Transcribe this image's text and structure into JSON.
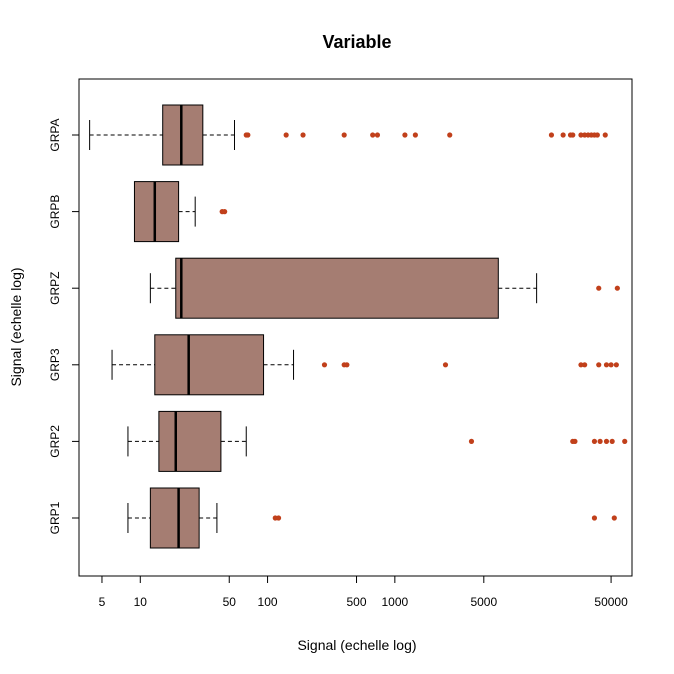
{
  "chart_data": {
    "type": "boxplot",
    "orientation": "horizontal",
    "title": "Variable",
    "xlabel": "Signal (echelle log)",
    "ylabel": "Signal (echelle log)",
    "x_scale": "log",
    "xlim": [
      3.3,
      73000
    ],
    "x_ticks": [
      5,
      10,
      50,
      100,
      500,
      1000,
      5000,
      50000
    ],
    "x_tick_labels": [
      "5",
      "10",
      "50",
      "100",
      "500",
      "1000",
      "5000",
      "50000"
    ],
    "grid": false,
    "box_color": "#a57d72",
    "outlier_color": "#c1401b",
    "groups": [
      {
        "label": "GRP1",
        "whisker_low": 8,
        "q1": 12,
        "median": 20,
        "q3": 29,
        "whisker_high": 40,
        "outliers": [
          115,
          122,
          37000,
          53000
        ]
      },
      {
        "label": "GRP2",
        "whisker_low": 8,
        "q1": 14,
        "median": 19,
        "q3": 43,
        "whisker_high": 68,
        "outliers": [
          4000,
          25000,
          26000,
          37000,
          41000,
          46000,
          51000,
          64000
        ]
      },
      {
        "label": "GRP3",
        "whisker_low": 6,
        "q1": 13,
        "median": 24,
        "q3": 93,
        "whisker_high": 160,
        "outliers": [
          280,
          400,
          420,
          2500,
          29000,
          31000,
          40000,
          46000,
          50000,
          55000
        ]
      },
      {
        "label": "GRPZ",
        "whisker_low": 12,
        "q1": 19,
        "median": 21,
        "q3": 6500,
        "whisker_high": 13000,
        "outliers": [
          40000,
          56000
        ]
      },
      {
        "label": "GRPB",
        "whisker_low": null,
        "q1": 9,
        "median": 13,
        "q3": 20,
        "whisker_high": 27,
        "outliers": [
          44,
          46
        ]
      },
      {
        "label": "GRPA",
        "whisker_low": 4,
        "q1": 15,
        "median": 21,
        "q3": 31,
        "whisker_high": 55,
        "outliers": [
          68,
          70,
          140,
          190,
          400,
          670,
          730,
          1200,
          1450,
          2700,
          17000,
          21000,
          24000,
          25000,
          29000,
          31000,
          33000,
          35000,
          37000,
          39000,
          45000
        ]
      }
    ]
  }
}
